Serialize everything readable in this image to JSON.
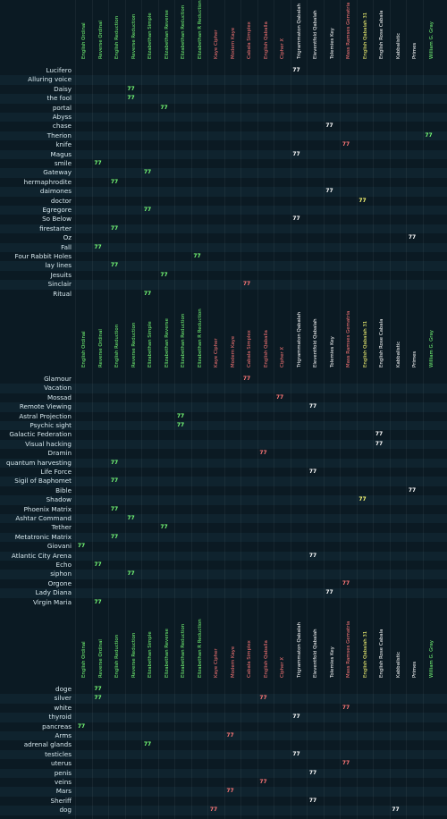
{
  "columns": [
    {
      "label": "English Ordinal",
      "color": "#77ff77"
    },
    {
      "label": "Reverse Ordinal",
      "color": "#77ff77"
    },
    {
      "label": "English Reduction",
      "color": "#77ff77"
    },
    {
      "label": "Reverse Reduction",
      "color": "#77ff77"
    },
    {
      "label": "Elizabethan Simple",
      "color": "#77ff77"
    },
    {
      "label": "Elizabethan Reverse",
      "color": "#77ff77"
    },
    {
      "label": "Elizabethan Reduction",
      "color": "#77ff77"
    },
    {
      "label": "Elizabethan R Reduction",
      "color": "#77ff77"
    },
    {
      "label": "Kaye Cipher",
      "color": "#ff7777"
    },
    {
      "label": "Modern Kaye",
      "color": "#ff7777"
    },
    {
      "label": "Cabala Simplex",
      "color": "#ff7777"
    },
    {
      "label": "English Qaballa",
      "color": "#ff7777"
    },
    {
      "label": "Cipher X",
      "color": "#ff7777"
    },
    {
      "label": "Trigrammaton Qabalah",
      "color": "#ffffff"
    },
    {
      "label": "Eleventfold Qabalah",
      "color": "#ffffff"
    },
    {
      "label": "Tolemies Key",
      "color": "#ffffff"
    },
    {
      "label": "Mass Ramses Gematria",
      "color": "#ff7777"
    },
    {
      "label": "English Qabalah 31",
      "color": "#ffff77"
    },
    {
      "label": "English Rose Cabala",
      "color": "#ffffff"
    },
    {
      "label": "Kabbalistic",
      "color": "#ffffff"
    },
    {
      "label": "Primes",
      "color": "#ffffff"
    },
    {
      "label": "William G. Gray",
      "color": "#77ff77"
    }
  ],
  "blocks": [
    {
      "rows": [
        {
          "label": "Lucifero",
          "hl": [
            [
              13,
              "77"
            ]
          ]
        },
        {
          "label": "Alluring voice",
          "hl": []
        },
        {
          "label": "Daisy",
          "hl": [
            [
              3,
              "77"
            ]
          ]
        },
        {
          "label": "the fool",
          "hl": [
            [
              3,
              "77"
            ]
          ]
        },
        {
          "label": "portal",
          "hl": [
            [
              5,
              "77"
            ]
          ]
        },
        {
          "label": "Abyss",
          "hl": []
        },
        {
          "label": "chase",
          "hl": [
            [
              15,
              "77"
            ]
          ]
        },
        {
          "label": "Therion",
          "hl": [
            [
              21,
              "77"
            ]
          ]
        },
        {
          "label": "knife",
          "hl": [
            [
              16,
              "77"
            ]
          ]
        },
        {
          "label": "Magus",
          "hl": [
            [
              13,
              "77"
            ]
          ]
        },
        {
          "label": "smile",
          "hl": [
            [
              1,
              "77"
            ]
          ]
        },
        {
          "label": "Gateway",
          "hl": [
            [
              4,
              "77"
            ]
          ]
        },
        {
          "label": "hermaphrodite",
          "hl": [
            [
              2,
              "77"
            ]
          ]
        },
        {
          "label": "daimones",
          "hl": [
            [
              15,
              "77"
            ]
          ]
        },
        {
          "label": "doctor",
          "hl": [
            [
              17,
              "77"
            ]
          ]
        },
        {
          "label": "Egregore",
          "hl": [
            [
              4,
              "77"
            ]
          ]
        },
        {
          "label": "So Below",
          "hl": [
            [
              13,
              "77"
            ]
          ]
        },
        {
          "label": "firestarter",
          "hl": [
            [
              2,
              "77"
            ]
          ]
        },
        {
          "label": "Oz",
          "hl": [
            [
              20,
              "77"
            ]
          ]
        },
        {
          "label": "Fall",
          "hl": [
            [
              1,
              "77"
            ]
          ]
        },
        {
          "label": "Four Rabbit Holes",
          "hl": [
            [
              7,
              "77"
            ]
          ]
        },
        {
          "label": "lay lines",
          "hl": [
            [
              2,
              "77"
            ]
          ]
        },
        {
          "label": "Jesuits",
          "hl": [
            [
              5,
              "77"
            ]
          ]
        },
        {
          "label": "Sinclair",
          "hl": [
            [
              10,
              "77"
            ]
          ]
        },
        {
          "label": "Ritual",
          "hl": [
            [
              4,
              "77"
            ]
          ]
        }
      ]
    },
    {
      "rows": [
        {
          "label": "Glamour",
          "hl": [
            [
              10,
              "77"
            ]
          ]
        },
        {
          "label": "Vacation",
          "hl": []
        },
        {
          "label": "Mossad",
          "hl": [
            [
              12,
              "77"
            ]
          ]
        },
        {
          "label": "Remote Viewing",
          "hl": [
            [
              14,
              "77"
            ]
          ]
        },
        {
          "label": "Astral Projection",
          "hl": [
            [
              6,
              "77"
            ]
          ]
        },
        {
          "label": "Psychic sight",
          "hl": [
            [
              6,
              "77"
            ]
          ]
        },
        {
          "label": "Galactic Federation",
          "hl": [
            [
              18,
              "77"
            ]
          ]
        },
        {
          "label": "Visual hacking",
          "hl": [
            [
              18,
              "77"
            ]
          ]
        },
        {
          "label": "Dramin",
          "hl": [
            [
              11,
              "77"
            ]
          ]
        },
        {
          "label": "quantum harvesting",
          "hl": [
            [
              2,
              "77"
            ]
          ]
        },
        {
          "label": "Life Force",
          "hl": [
            [
              14,
              "77"
            ]
          ]
        },
        {
          "label": "Sigil of Baphomet",
          "hl": [
            [
              2,
              "77"
            ]
          ]
        },
        {
          "label": "Bible",
          "hl": [
            [
              20,
              "77"
            ]
          ]
        },
        {
          "label": "Shadow",
          "hl": [
            [
              17,
              "77"
            ]
          ]
        },
        {
          "label": "Phoenix Matrix",
          "hl": [
            [
              2,
              "77"
            ]
          ]
        },
        {
          "label": "Ashtar Command",
          "hl": [
            [
              3,
              "77"
            ]
          ]
        },
        {
          "label": "Tether",
          "hl": [
            [
              5,
              "77"
            ]
          ]
        },
        {
          "label": "Metatronic Matrix",
          "hl": [
            [
              2,
              "77"
            ]
          ]
        },
        {
          "label": "Giovani",
          "hl": [
            [
              0,
              "77"
            ]
          ]
        },
        {
          "label": "Atlantic City Arena",
          "hl": [
            [
              14,
              "77"
            ]
          ]
        },
        {
          "label": "Echo",
          "hl": [
            [
              1,
              "77"
            ]
          ]
        },
        {
          "label": "siphon",
          "hl": [
            [
              3,
              "77"
            ]
          ]
        },
        {
          "label": "Orgone",
          "hl": [
            [
              16,
              "77"
            ]
          ]
        },
        {
          "label": "Lady Diana",
          "hl": [
            [
              15,
              "77"
            ]
          ]
        },
        {
          "label": "Virgin Maria",
          "hl": [
            [
              1,
              "77"
            ]
          ]
        }
      ]
    },
    {
      "rows": [
        {
          "label": "doge",
          "hl": [
            [
              1,
              "77"
            ]
          ]
        },
        {
          "label": "silver",
          "hl": [
            [
              1,
              "77"
            ],
            [
              11,
              "77"
            ]
          ]
        },
        {
          "label": "white",
          "hl": [
            [
              16,
              "77"
            ]
          ]
        },
        {
          "label": "thyroid",
          "hl": [
            [
              13,
              "77"
            ]
          ]
        },
        {
          "label": "pancreas",
          "hl": [
            [
              0,
              "77"
            ]
          ]
        },
        {
          "label": "Arms",
          "hl": [
            [
              9,
              "77"
            ]
          ]
        },
        {
          "label": "adrenal glands",
          "hl": [
            [
              4,
              "77"
            ]
          ]
        },
        {
          "label": "testicles",
          "hl": [
            [
              13,
              "77"
            ]
          ]
        },
        {
          "label": "uterus",
          "hl": [
            [
              16,
              "77"
            ]
          ]
        },
        {
          "label": "penis",
          "hl": [
            [
              14,
              "77"
            ]
          ]
        },
        {
          "label": "veins",
          "hl": [
            [
              11,
              "77"
            ]
          ]
        },
        {
          "label": "Mars",
          "hl": [
            [
              9,
              "77"
            ]
          ]
        },
        {
          "label": "Sheriff",
          "hl": [
            [
              14,
              "77"
            ]
          ]
        },
        {
          "label": "dog",
          "hl": [
            [
              8,
              "77"
            ],
            [
              19,
              "77"
            ]
          ]
        }
      ]
    }
  ]
}
